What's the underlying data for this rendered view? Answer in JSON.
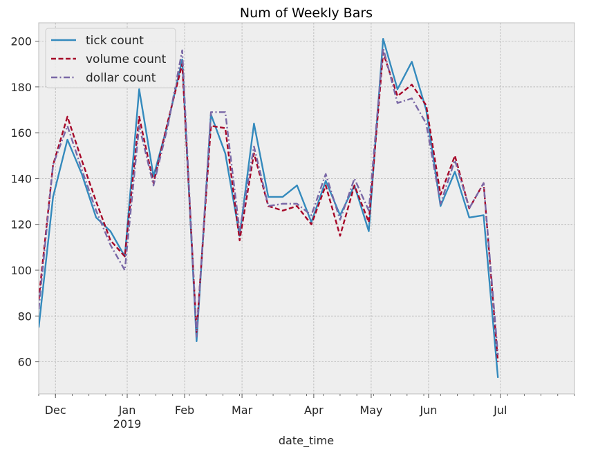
{
  "chart_data": {
    "type": "line",
    "title": "Num of Weekly Bars",
    "xlabel": "date_time",
    "ylabel": "",
    "ylim": [
      46,
      208
    ],
    "xlim": [
      "2018-11-25",
      "2019-07-07"
    ],
    "yticks": [
      60,
      80,
      100,
      120,
      140,
      160,
      180,
      200
    ],
    "xticks": [
      {
        "date": "2018-12-02",
        "label": "Dec",
        "sublabel": ""
      },
      {
        "date": "2019-01-01",
        "label": "Jan",
        "sublabel": "2019"
      },
      {
        "date": "2019-01-25",
        "label": "Feb",
        "sublabel": ""
      },
      {
        "date": "2019-02-18",
        "label": "Mar",
        "sublabel": ""
      },
      {
        "date": "2019-03-20",
        "label": "Apr",
        "sublabel": ""
      },
      {
        "date": "2019-04-13",
        "label": "May",
        "sublabel": ""
      },
      {
        "date": "2019-05-07",
        "label": "Jun",
        "sublabel": ""
      },
      {
        "date": "2019-06-06",
        "label": "Jul",
        "sublabel": ""
      }
    ],
    "x": [
      "2018-11-25",
      "2018-12-01",
      "2018-12-07",
      "2018-12-13",
      "2018-12-19",
      "2018-12-25",
      "2018-12-31",
      "2019-01-06",
      "2019-01-12",
      "2019-01-18",
      "2019-01-24",
      "2019-01-30",
      "2019-02-05",
      "2019-02-11",
      "2019-02-17",
      "2019-02-23",
      "2019-03-01",
      "2019-03-07",
      "2019-03-13",
      "2019-03-19",
      "2019-03-25",
      "2019-03-31",
      "2019-04-06",
      "2019-04-12",
      "2019-04-18",
      "2019-04-24",
      "2019-04-30",
      "2019-05-06",
      "2019-05-12",
      "2019-05-18",
      "2019-05-24",
      "2019-05-30",
      "2019-06-05"
    ],
    "series": [
      {
        "name": "tick count",
        "color": "#348ABD",
        "dash": "solid",
        "values": [
          75,
          132,
          157,
          142,
          123,
          117,
          106,
          179,
          141,
          164,
          192,
          69,
          168,
          151,
          115,
          164,
          132,
          132,
          137,
          121,
          139,
          124,
          137,
          117,
          201,
          179,
          191,
          170,
          128,
          143,
          123,
          124,
          53
        ]
      },
      {
        "name": "volume count",
        "color": "#A60628",
        "dash": "dashed",
        "values": [
          87,
          146,
          167,
          148,
          130,
          113,
          106,
          167,
          138,
          165,
          190,
          73,
          163,
          162,
          113,
          151,
          128,
          126,
          128,
          120,
          137,
          115,
          137,
          121,
          195,
          176,
          181,
          172,
          133,
          150,
          127,
          138,
          60
        ]
      },
      {
        "name": "dollar count",
        "color": "#7A68A6",
        "dash": "dashdot",
        "values": [
          83,
          146,
          163,
          144,
          126,
          111,
          100,
          163,
          137,
          163,
          196,
          71,
          169,
          169,
          117,
          154,
          128,
          129,
          129,
          124,
          142,
          122,
          140,
          126,
          197,
          173,
          175,
          164,
          129,
          148,
          127,
          138,
          63
        ]
      }
    ],
    "grid": true,
    "legend_position": "top-left"
  }
}
